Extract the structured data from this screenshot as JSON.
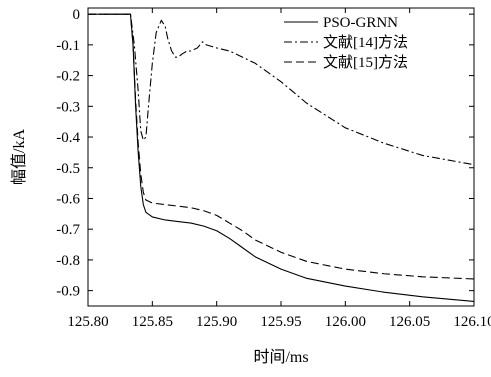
{
  "chart_data": {
    "type": "line",
    "xlabel": "时间/ms",
    "ylabel": "幅值/kA",
    "xlim": [
      125.8,
      126.1
    ],
    "ylim": [
      -0.95,
      0.02
    ],
    "x_ticks": [
      "125.80",
      "125.85",
      "125.90",
      "125.95",
      "126.00",
      "126.05",
      "126.10"
    ],
    "y_ticks": [
      "0",
      "-0.1",
      "-0.2",
      "-0.3",
      "-0.4",
      "-0.5",
      "-0.6",
      "-0.7",
      "-0.8",
      "-0.9"
    ],
    "legend_position": "top-right",
    "grid": false,
    "series": [
      {
        "name": "PSO-GRNN",
        "style": "solid",
        "x": [
          125.8,
          125.833,
          125.835,
          125.837,
          125.839,
          125.841,
          125.843,
          125.845,
          125.85,
          125.86,
          125.87,
          125.88,
          125.89,
          125.9,
          125.91,
          125.92,
          125.93,
          125.95,
          125.97,
          126.0,
          126.03,
          126.06,
          126.1
        ],
        "y": [
          0.0,
          0.0,
          -0.1,
          -0.3,
          -0.45,
          -0.56,
          -0.62,
          -0.645,
          -0.66,
          -0.67,
          -0.675,
          -0.68,
          -0.69,
          -0.705,
          -0.73,
          -0.76,
          -0.79,
          -0.83,
          -0.86,
          -0.885,
          -0.905,
          -0.92,
          -0.935
        ]
      },
      {
        "name": "文献[14]方法",
        "style": "dashdot",
        "x": [
          125.8,
          125.833,
          125.836,
          125.839,
          125.841,
          125.843,
          125.845,
          125.847,
          125.85,
          125.853,
          125.857,
          125.86,
          125.862,
          125.865,
          125.868,
          125.87,
          125.873,
          125.877,
          125.88,
          125.885,
          125.889,
          125.892,
          125.9,
          125.91,
          125.92,
          125.93,
          125.95,
          125.97,
          126.0,
          126.03,
          126.06,
          126.1
        ],
        "y": [
          0.0,
          0.0,
          -0.1,
          -0.25,
          -0.38,
          -0.41,
          -0.4,
          -0.3,
          -0.16,
          -0.06,
          -0.02,
          -0.04,
          -0.08,
          -0.12,
          -0.14,
          -0.14,
          -0.13,
          -0.12,
          -0.12,
          -0.11,
          -0.09,
          -0.1,
          -0.11,
          -0.12,
          -0.14,
          -0.16,
          -0.22,
          -0.29,
          -0.37,
          -0.42,
          -0.46,
          -0.49
        ]
      },
      {
        "name": "文献[15]方法",
        "style": "dashed",
        "x": [
          125.8,
          125.833,
          125.835,
          125.837,
          125.839,
          125.841,
          125.843,
          125.845,
          125.85,
          125.86,
          125.87,
          125.88,
          125.89,
          125.9,
          125.91,
          125.92,
          125.93,
          125.95,
          125.97,
          126.0,
          126.03,
          126.06,
          126.1
        ],
        "y": [
          0.0,
          0.0,
          -0.1,
          -0.28,
          -0.42,
          -0.52,
          -0.58,
          -0.605,
          -0.615,
          -0.62,
          -0.625,
          -0.63,
          -0.64,
          -0.655,
          -0.68,
          -0.705,
          -0.735,
          -0.775,
          -0.805,
          -0.83,
          -0.845,
          -0.855,
          -0.862
        ]
      }
    ]
  }
}
